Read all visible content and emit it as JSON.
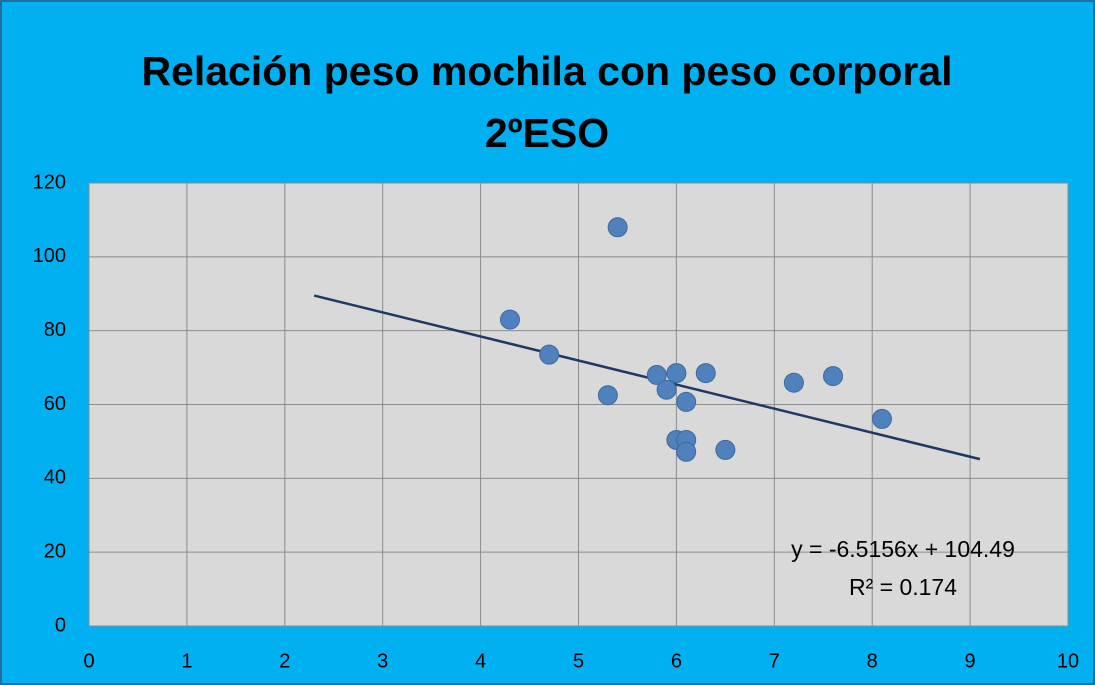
{
  "chart_data": {
    "type": "scatter",
    "title": "Relación peso mochila con peso corporal 2ºESO",
    "x": [
      4.3,
      4.7,
      5.4,
      5.3,
      5.8,
      5.9,
      6.0,
      6.3,
      6.1,
      6.0,
      6.1,
      6.1,
      6.5,
      7.2,
      7.6,
      8.1
    ],
    "values": [
      83,
      73.5,
      108,
      62.5,
      68,
      64,
      68.5,
      68.5,
      60.7,
      50.4,
      50.4,
      47.2,
      47.7,
      65.9,
      67.7,
      56.1
    ],
    "color": "#4f81bd",
    "trendline": {
      "x": [
        2.3,
        9.1
      ],
      "values": [
        89.5,
        45.2
      ],
      "color": "#1f3864"
    },
    "annotations": [
      "y = -6.5156x + 104.49",
      "R² = 0.174"
    ],
    "xlim": [
      0,
      10
    ],
    "xticks": [
      0,
      1,
      2,
      3,
      4,
      5,
      6,
      7,
      8,
      9,
      10
    ],
    "ylim": [
      0,
      120
    ],
    "yticks": [
      0,
      20,
      40,
      60,
      80,
      100,
      120
    ],
    "grid": true
  }
}
